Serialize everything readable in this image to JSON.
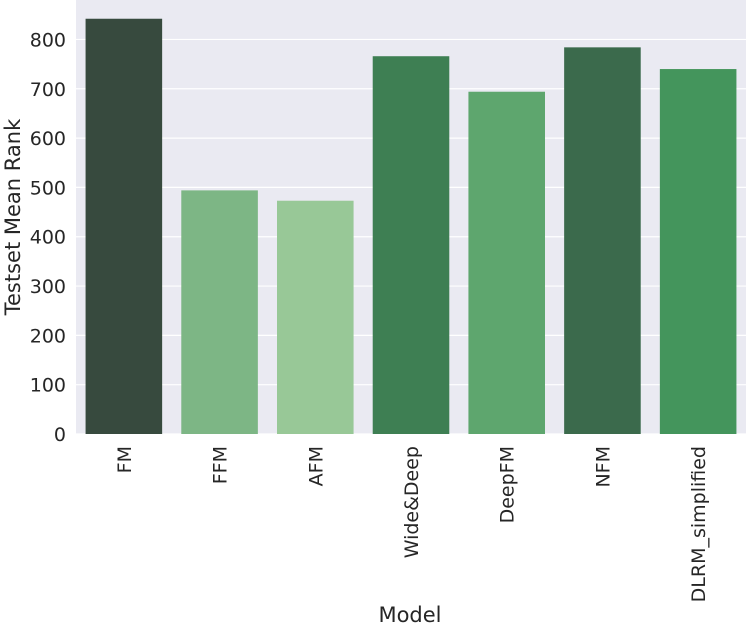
{
  "chart_data": {
    "type": "bar",
    "title": "",
    "xlabel": "Model",
    "ylabel": "Testset Mean Rank",
    "categories": [
      "FM",
      "FFM",
      "AFM",
      "Wide&Deep",
      "DeepFM",
      "NFM",
      "DLRM_simplified"
    ],
    "values": [
      842,
      494,
      473,
      766,
      694,
      784,
      740
    ],
    "colors": [
      "#374a3e",
      "#7db685",
      "#98c897",
      "#3e7f53",
      "#5ea66e",
      "#3b6a4c",
      "#44955c"
    ],
    "ylim": [
      0,
      880
    ],
    "yticks": [
      0,
      100,
      200,
      300,
      400,
      500,
      600,
      700,
      800
    ],
    "grid": true,
    "background": "#eaeaf2",
    "legend": "none"
  }
}
